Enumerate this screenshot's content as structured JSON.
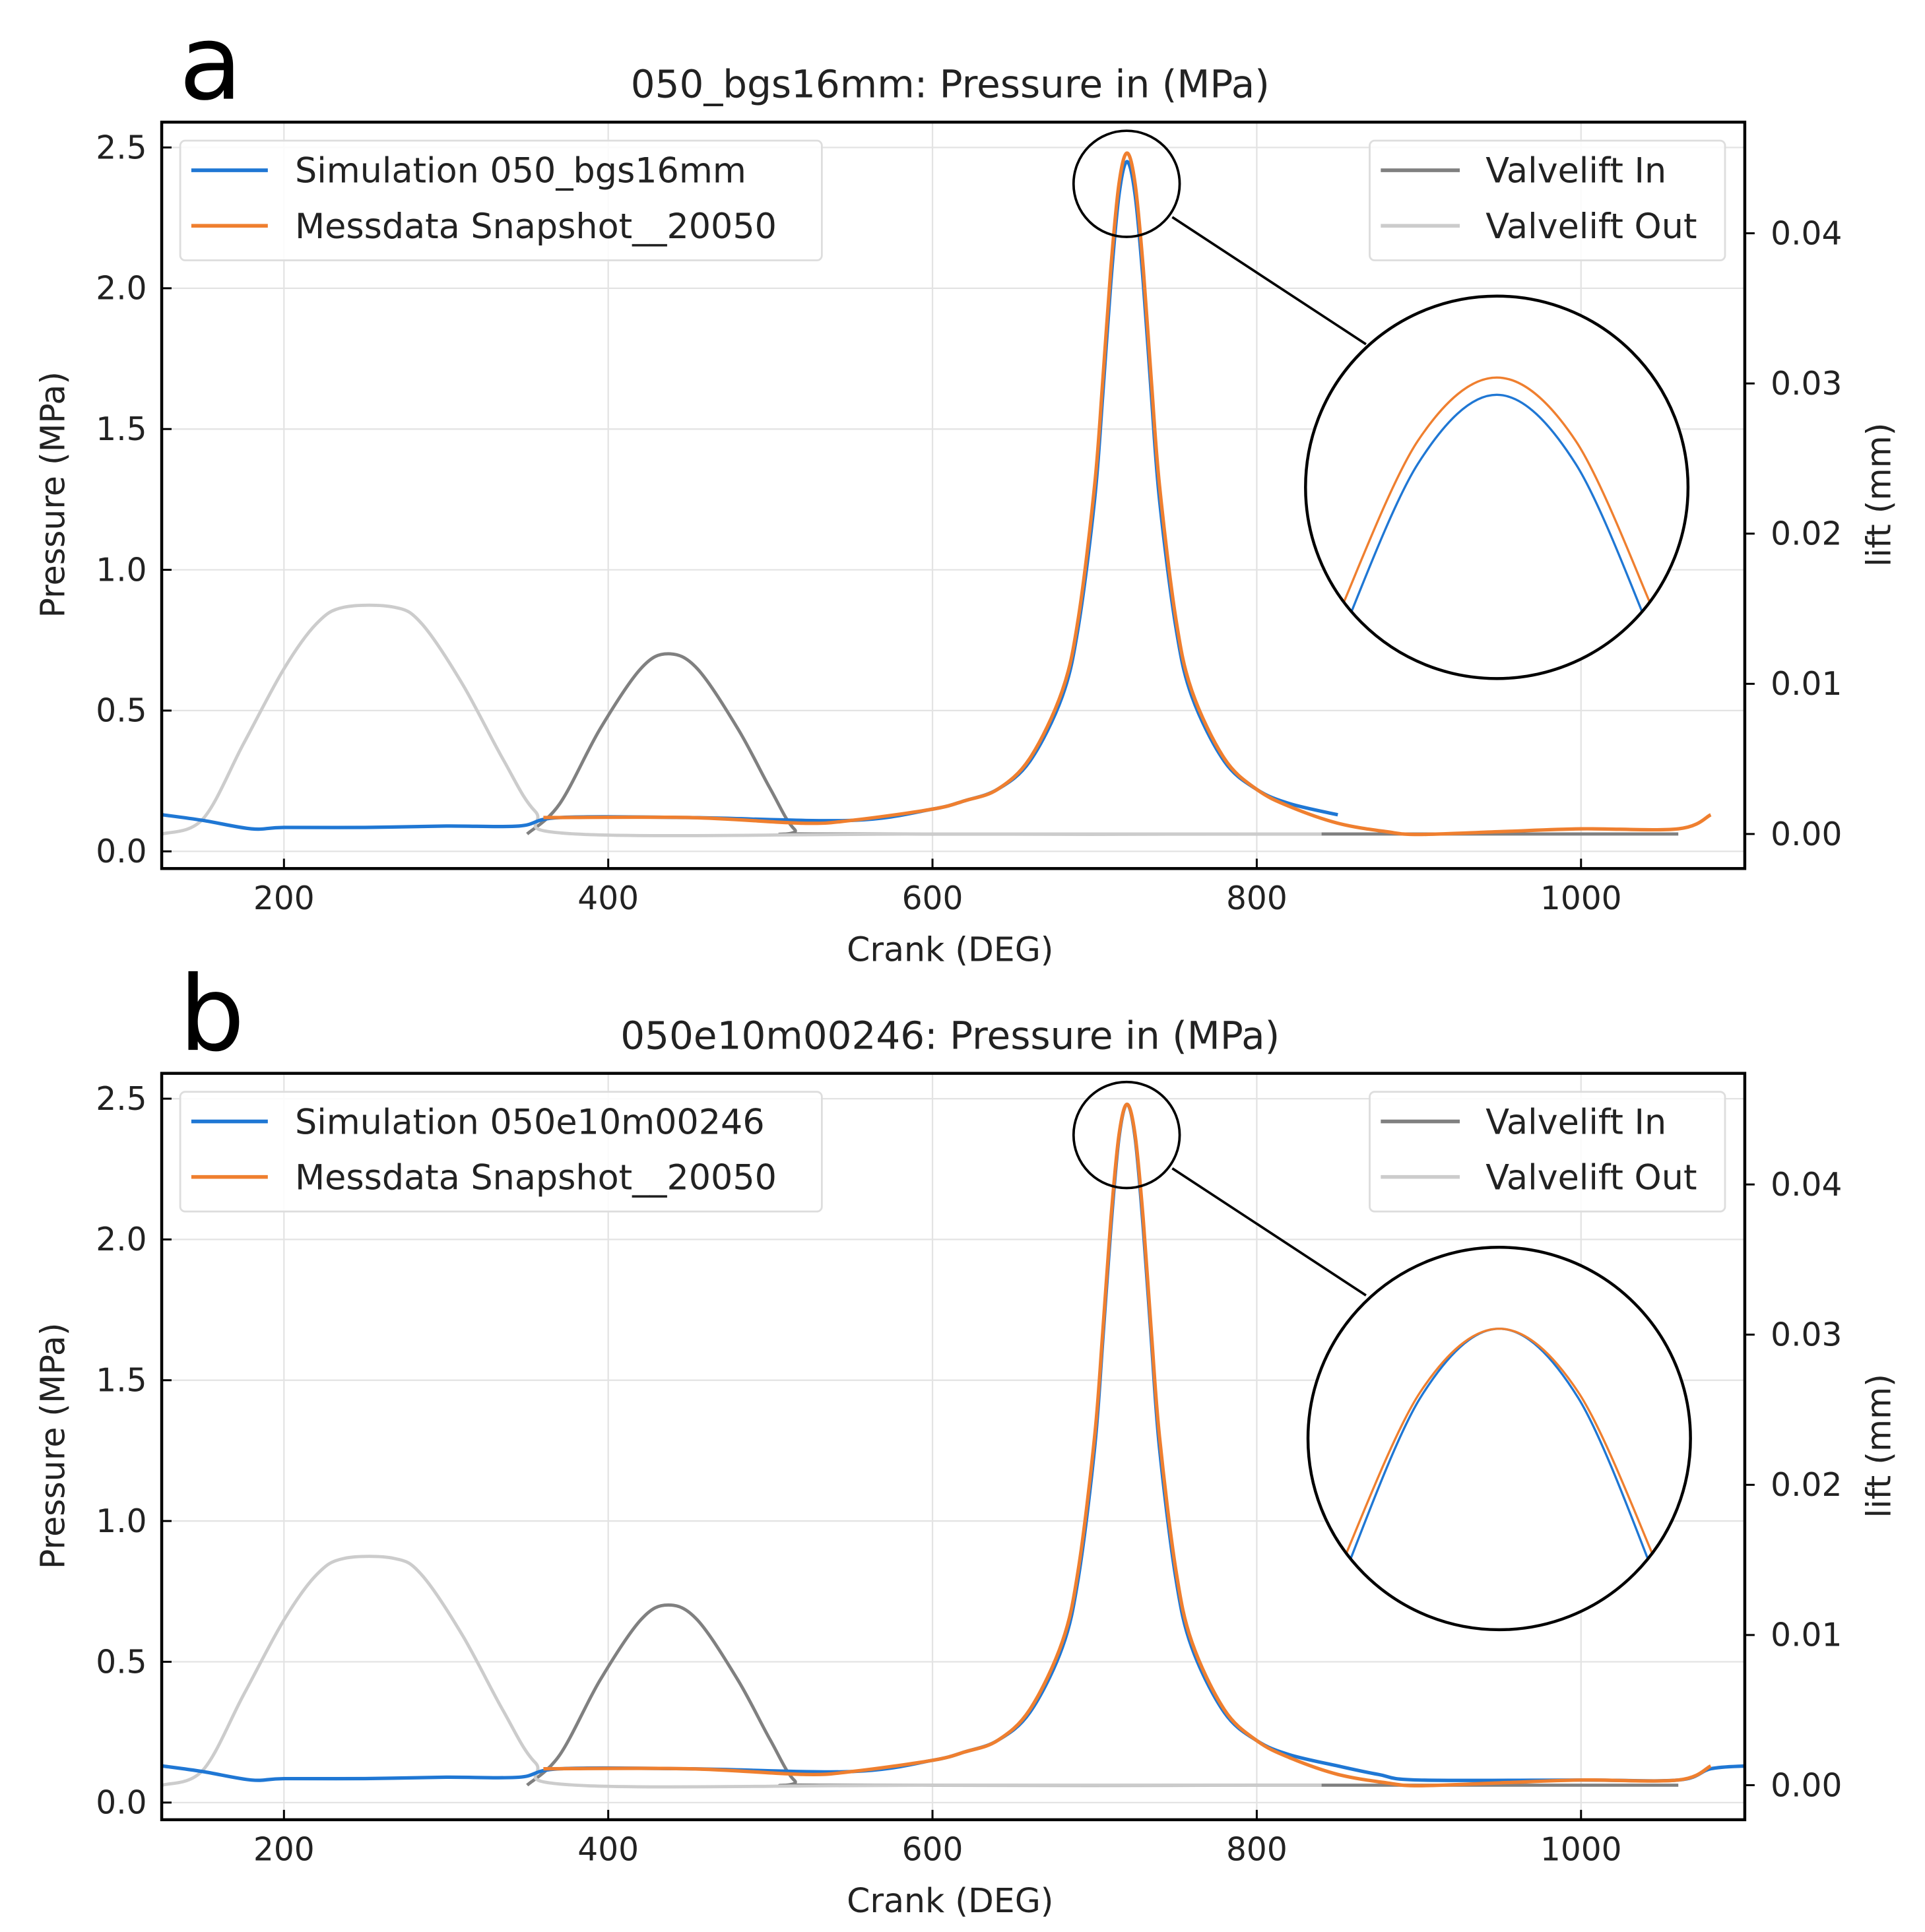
{
  "chart_data": [
    {
      "type": "line",
      "panel_label": "a",
      "title": "050_bgs16mm: Pressure in (MPa)",
      "xlabel": "Crank (DEG)",
      "ylabel": "Pressure (MPa)",
      "y2label": "lift (mm)",
      "xlim": [
        124.6,
        1101
      ],
      "ylim": [
        -0.061,
        2.59
      ],
      "y2lim": [
        -0.0023,
        0.0474
      ],
      "grid": true,
      "xticks": [
        200,
        400,
        600,
        800,
        1000
      ],
      "xtick_labels": [
        "200",
        "400",
        "600",
        "800",
        "1000"
      ],
      "yticks": [
        0,
        0.5,
        1.0,
        1.5,
        2.0,
        2.5
      ],
      "ytick_labels": [
        "0.0",
        "0.5",
        "1.0",
        "1.5",
        "2.0",
        "2.5"
      ],
      "y2ticks": [
        0,
        0.01,
        0.02,
        0.03,
        0.04
      ],
      "y2tick_labels": [
        "0.00",
        "0.01",
        "0.02",
        "0.03",
        "0.04"
      ],
      "legend_left": [
        "Simulation 050_bgs16mm",
        "Messdata Snapshot__20050"
      ],
      "legend_right": [
        "Valvelift In",
        "Valvelift Out"
      ],
      "legend_placement": [
        "top-left",
        "top-right"
      ],
      "inset": {
        "type": "magnified-peak",
        "center_crank": 720
      },
      "series": [
        {
          "name": "Valvelift In",
          "axis": "right",
          "color": "#808080",
          "points": [
            [
              350,
              0
            ],
            [
              370,
              0.002
            ],
            [
              395,
              0.007
            ],
            [
              420,
              0.011
            ],
            [
              437,
              0.012
            ],
            [
              455,
              0.011
            ],
            [
              480,
              0.007
            ],
            [
              500,
              0.003
            ],
            [
              515,
              0.0003
            ],
            [
              530,
              0
            ],
            [
              800,
              0
            ],
            [
              1060,
              0
            ]
          ]
        },
        {
          "name": "Valvelift Out",
          "axis": "right",
          "color": "#cccccc",
          "points": [
            [
              125,
              0
            ],
            [
              150,
              0.001
            ],
            [
              175,
              0.006
            ],
            [
              200,
              0.011
            ],
            [
              220,
              0.014
            ],
            [
              237,
              0.0151
            ],
            [
              268,
              0.0151
            ],
            [
              285,
              0.014
            ],
            [
              310,
              0.01
            ],
            [
              335,
              0.005
            ],
            [
              355,
              0.0015
            ],
            [
              380,
              0
            ],
            [
              600,
              0
            ],
            [
              840,
              0
            ]
          ]
        },
        {
          "name": "Simulation 050_bgs16mm",
          "axis": "left",
          "color": "#1f77d4",
          "points": [
            [
              125,
              0.13
            ],
            [
              150,
              0.11
            ],
            [
              180,
              0.08
            ],
            [
              200,
              0.085
            ],
            [
              250,
              0.085
            ],
            [
              300,
              0.09
            ],
            [
              345,
              0.09
            ],
            [
              370,
              0.12
            ],
            [
              450,
              0.12
            ],
            [
              550,
              0.11
            ],
            [
              600,
              0.15
            ],
            [
              620,
              0.18
            ],
            [
              640,
              0.22
            ],
            [
              660,
              0.32
            ],
            [
              680,
              0.55
            ],
            [
              690,
              0.8
            ],
            [
              700,
              1.25
            ],
            [
              705,
              1.62
            ],
            [
              710,
              2.02
            ],
            [
              715,
              2.33
            ],
            [
              720,
              2.45
            ],
            [
              725,
              2.33
            ],
            [
              730,
              2.02
            ],
            [
              735,
              1.62
            ],
            [
              740,
              1.25
            ],
            [
              750,
              0.8
            ],
            [
              760,
              0.55
            ],
            [
              780,
              0.32
            ],
            [
              800,
              0.22
            ],
            [
              820,
              0.17
            ],
            [
              850,
              0.13
            ]
          ]
        },
        {
          "name": "Messdata Snapshot__20050",
          "axis": "left",
          "color": "#ef7f2f",
          "points": [
            [
              360,
              0.12
            ],
            [
              450,
              0.12
            ],
            [
              520,
              0.1
            ],
            [
              550,
              0.11
            ],
            [
              600,
              0.15
            ],
            [
              620,
              0.18
            ],
            [
              640,
              0.22
            ],
            [
              660,
              0.33
            ],
            [
              680,
              0.57
            ],
            [
              690,
              0.83
            ],
            [
              700,
              1.3
            ],
            [
              705,
              1.67
            ],
            [
              710,
              2.07
            ],
            [
              715,
              2.37
            ],
            [
              720,
              2.48
            ],
            [
              725,
              2.37
            ],
            [
              730,
              2.07
            ],
            [
              735,
              1.67
            ],
            [
              740,
              1.3
            ],
            [
              750,
              0.83
            ],
            [
              760,
              0.57
            ],
            [
              780,
              0.33
            ],
            [
              800,
              0.22
            ],
            [
              820,
              0.16
            ],
            [
              850,
              0.1
            ],
            [
              880,
              0.07
            ],
            [
              900,
              0.06
            ],
            [
              950,
              0.07
            ],
            [
              1000,
              0.08
            ],
            [
              1060,
              0.08
            ],
            [
              1080,
              0.13
            ]
          ]
        }
      ]
    },
    {
      "type": "line",
      "panel_label": "b",
      "title": "050e10m00246: Pressure in (MPa)",
      "xlabel": "Crank (DEG)",
      "ylabel": "Pressure (MPa)",
      "y2label": "lift (mm)",
      "xlim": [
        124.6,
        1101
      ],
      "ylim": [
        -0.061,
        2.59
      ],
      "y2lim": [
        -0.0023,
        0.0474
      ],
      "grid": true,
      "xticks": [
        200,
        400,
        600,
        800,
        1000
      ],
      "xtick_labels": [
        "200",
        "400",
        "600",
        "800",
        "1000"
      ],
      "yticks": [
        0,
        0.5,
        1.0,
        1.5,
        2.0,
        2.5
      ],
      "ytick_labels": [
        "0.0",
        "0.5",
        "1.0",
        "1.5",
        "2.0",
        "2.5"
      ],
      "y2ticks": [
        0,
        0.01,
        0.02,
        0.03,
        0.04
      ],
      "y2tick_labels": [
        "0.00",
        "0.01",
        "0.02",
        "0.03",
        "0.04"
      ],
      "legend_left": [
        "Simulation 050e10m00246",
        "Messdata Snapshot__20050"
      ],
      "legend_right": [
        "Valvelift In",
        "Valvelift Out"
      ],
      "legend_placement": [
        "top-left",
        "top-right"
      ],
      "inset": {
        "type": "magnified-peak",
        "center_crank": 720
      },
      "series": [
        {
          "name": "Valvelift In",
          "axis": "right",
          "color": "#808080",
          "points": [
            [
              350,
              0
            ],
            [
              370,
              0.002
            ],
            [
              395,
              0.007
            ],
            [
              420,
              0.011
            ],
            [
              437,
              0.012
            ],
            [
              455,
              0.011
            ],
            [
              480,
              0.007
            ],
            [
              500,
              0.003
            ],
            [
              515,
              0.0003
            ],
            [
              530,
              0
            ],
            [
              800,
              0
            ],
            [
              1060,
              0
            ]
          ]
        },
        {
          "name": "Valvelift Out",
          "axis": "right",
          "color": "#cccccc",
          "points": [
            [
              125,
              0
            ],
            [
              150,
              0.001
            ],
            [
              175,
              0.006
            ],
            [
              200,
              0.011
            ],
            [
              220,
              0.014
            ],
            [
              237,
              0.0151
            ],
            [
              268,
              0.0151
            ],
            [
              285,
              0.014
            ],
            [
              310,
              0.01
            ],
            [
              335,
              0.005
            ],
            [
              355,
              0.0015
            ],
            [
              380,
              0
            ],
            [
              600,
              0
            ],
            [
              840,
              0
            ]
          ]
        },
        {
          "name": "Simulation 050e10m00246",
          "axis": "left",
          "color": "#1f77d4",
          "points": [
            [
              125,
              0.13
            ],
            [
              150,
              0.11
            ],
            [
              180,
              0.08
            ],
            [
              200,
              0.085
            ],
            [
              250,
              0.085
            ],
            [
              300,
              0.09
            ],
            [
              345,
              0.09
            ],
            [
              370,
              0.12
            ],
            [
              450,
              0.12
            ],
            [
              550,
              0.11
            ],
            [
              600,
              0.15
            ],
            [
              620,
              0.18
            ],
            [
              640,
              0.22
            ],
            [
              660,
              0.32
            ],
            [
              680,
              0.55
            ],
            [
              690,
              0.8
            ],
            [
              700,
              1.26
            ],
            [
              705,
              1.64
            ],
            [
              710,
              2.04
            ],
            [
              715,
              2.36
            ],
            [
              720,
              2.48
            ],
            [
              725,
              2.36
            ],
            [
              730,
              2.04
            ],
            [
              735,
              1.64
            ],
            [
              740,
              1.26
            ],
            [
              750,
              0.8
            ],
            [
              760,
              0.55
            ],
            [
              780,
              0.32
            ],
            [
              800,
              0.22
            ],
            [
              820,
              0.17
            ],
            [
              850,
              0.13
            ],
            [
              875,
              0.1
            ],
            [
              900,
              0.08
            ],
            [
              1000,
              0.08
            ],
            [
              1060,
              0.08
            ],
            [
              1080,
              0.12
            ],
            [
              1101,
              0.13
            ]
          ]
        },
        {
          "name": "Messdata Snapshot__20050",
          "axis": "left",
          "color": "#ef7f2f",
          "points": [
            [
              360,
              0.12
            ],
            [
              450,
              0.12
            ],
            [
              520,
              0.1
            ],
            [
              550,
              0.11
            ],
            [
              600,
              0.15
            ],
            [
              620,
              0.18
            ],
            [
              640,
              0.22
            ],
            [
              660,
              0.33
            ],
            [
              680,
              0.57
            ],
            [
              690,
              0.83
            ],
            [
              700,
              1.3
            ],
            [
              705,
              1.67
            ],
            [
              710,
              2.07
            ],
            [
              715,
              2.37
            ],
            [
              720,
              2.48
            ],
            [
              725,
              2.37
            ],
            [
              730,
              2.07
            ],
            [
              735,
              1.67
            ],
            [
              740,
              1.3
            ],
            [
              750,
              0.83
            ],
            [
              760,
              0.57
            ],
            [
              780,
              0.33
            ],
            [
              800,
              0.22
            ],
            [
              820,
              0.16
            ],
            [
              850,
              0.1
            ],
            [
              880,
              0.07
            ],
            [
              900,
              0.06
            ],
            [
              950,
              0.07
            ],
            [
              1000,
              0.08
            ],
            [
              1060,
              0.08
            ],
            [
              1080,
              0.13
            ]
          ]
        }
      ]
    }
  ]
}
